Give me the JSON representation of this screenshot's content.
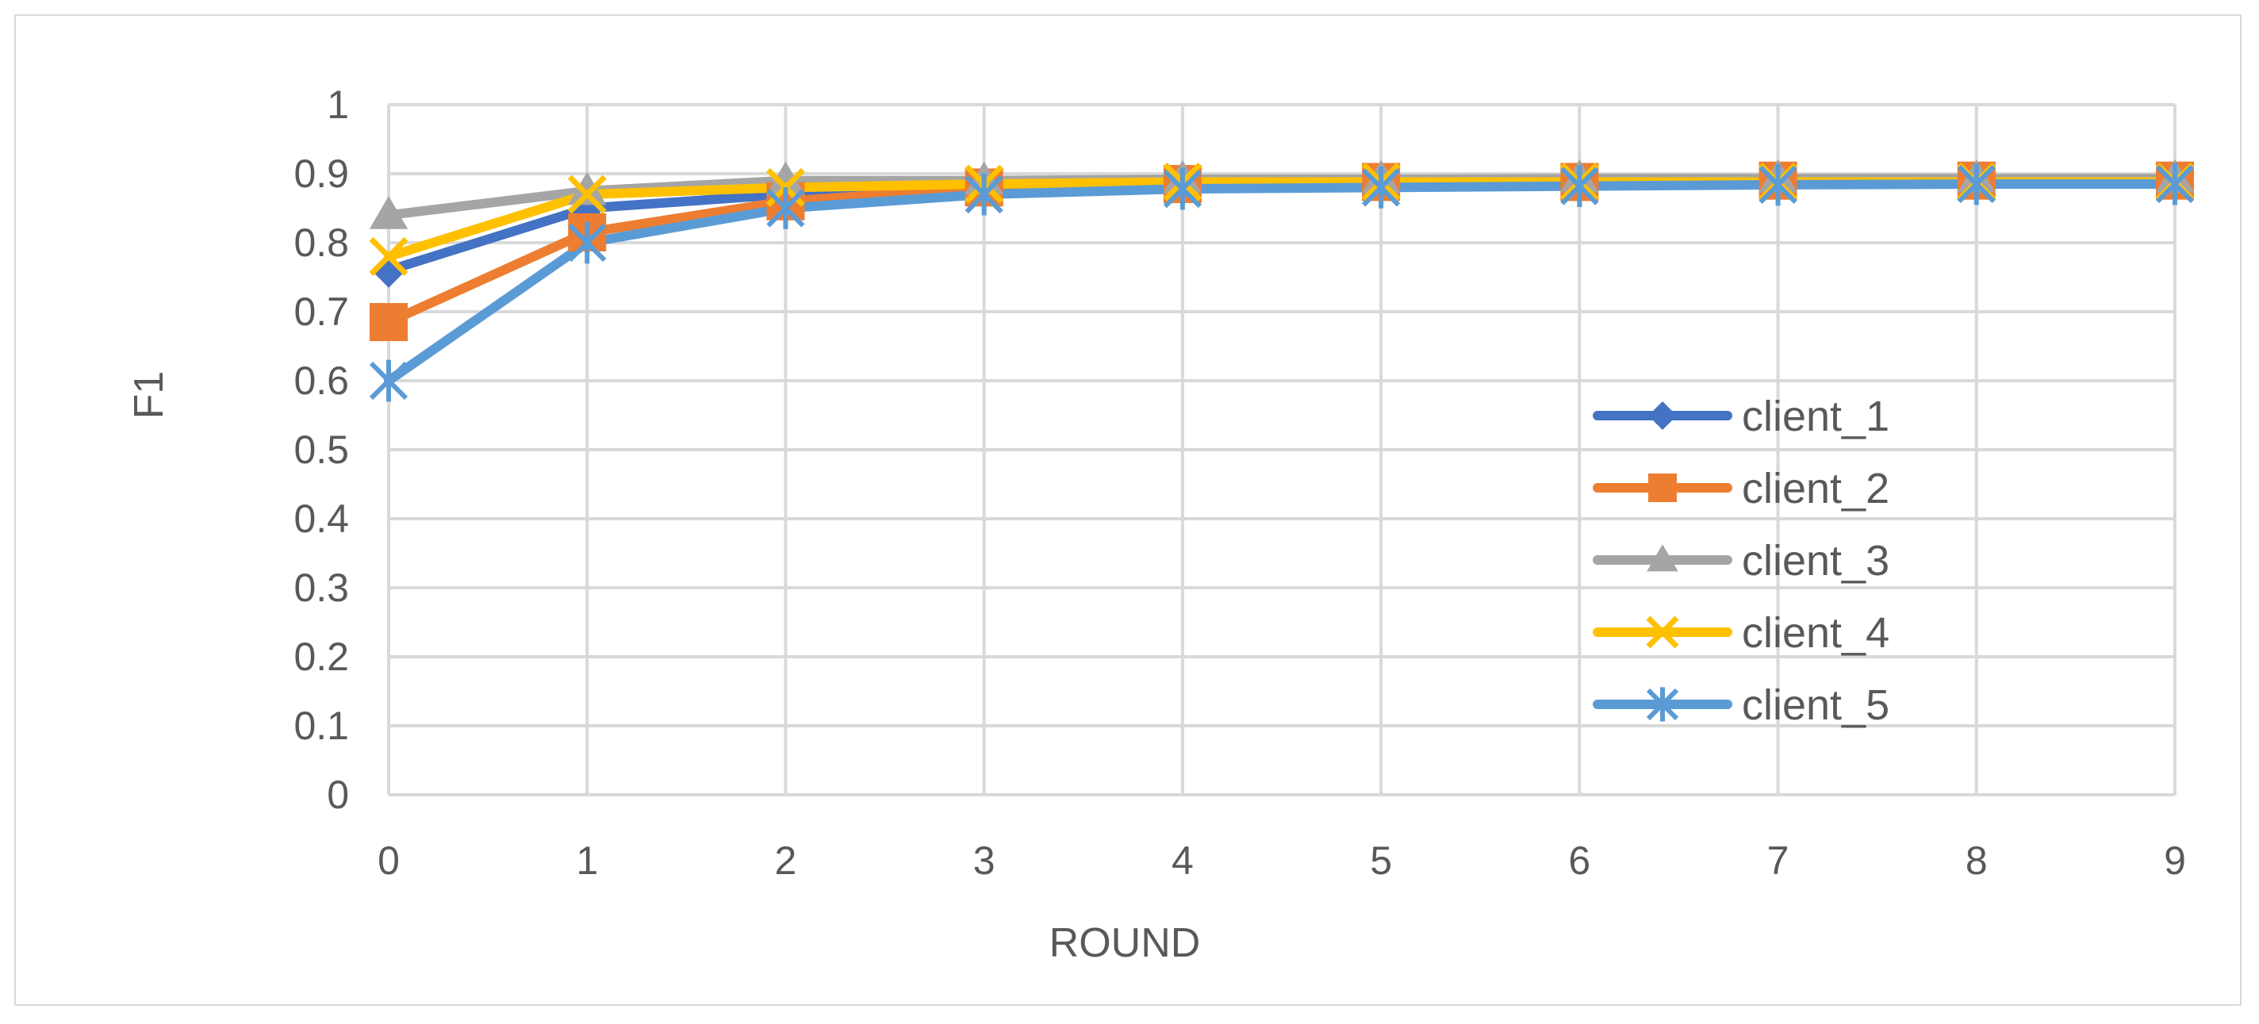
{
  "chart_data": {
    "type": "line",
    "title": "",
    "xlabel": "ROUND",
    "ylabel": "F1",
    "x": [
      0,
      1,
      2,
      3,
      4,
      5,
      6,
      7,
      8,
      9
    ],
    "ylim": [
      0,
      1
    ],
    "yticks": [
      "0",
      "0.1",
      "0.2",
      "0.3",
      "0.4",
      "0.5",
      "0.6",
      "0.7",
      "0.8",
      "0.9",
      "1"
    ],
    "xticks": [
      "0",
      "1",
      "2",
      "3",
      "4",
      "5",
      "6",
      "7",
      "8",
      "9"
    ],
    "grid": true,
    "legend_position": "right",
    "series": [
      {
        "name": "client_1",
        "color": "#4472C4",
        "marker": "diamond",
        "values": [
          0.76,
          0.85,
          0.87,
          0.88,
          0.885,
          0.885,
          0.888,
          0.89,
          0.89,
          0.89
        ]
      },
      {
        "name": "client_2",
        "color": "#ED7D31",
        "marker": "square",
        "values": [
          0.685,
          0.815,
          0.86,
          0.88,
          0.885,
          0.888,
          0.888,
          0.89,
          0.89,
          0.89
        ]
      },
      {
        "name": "client_3",
        "color": "#A5A5A5",
        "marker": "triangle",
        "values": [
          0.84,
          0.875,
          0.89,
          0.89,
          0.892,
          0.892,
          0.893,
          0.893,
          0.893,
          0.893
        ]
      },
      {
        "name": "client_4",
        "color": "#FFC000",
        "marker": "x",
        "values": [
          0.78,
          0.87,
          0.88,
          0.885,
          0.888,
          0.888,
          0.888,
          0.888,
          0.888,
          0.888
        ]
      },
      {
        "name": "client_5",
        "color": "#5B9BD5",
        "marker": "star",
        "values": [
          0.6,
          0.8,
          0.85,
          0.87,
          0.878,
          0.88,
          0.882,
          0.884,
          0.885,
          0.885
        ]
      }
    ]
  }
}
